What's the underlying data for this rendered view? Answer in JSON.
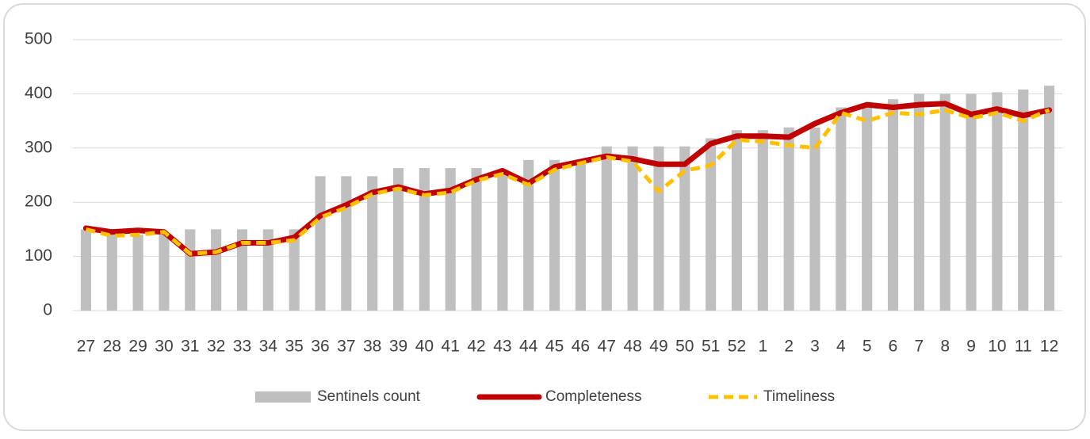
{
  "chart_data": {
    "type": "bar-line",
    "categories": [
      "27",
      "28",
      "29",
      "30",
      "31",
      "32",
      "33",
      "34",
      "35",
      "36",
      "37",
      "38",
      "39",
      "40",
      "41",
      "42",
      "43",
      "44",
      "45",
      "46",
      "47",
      "48",
      "49",
      "50",
      "51",
      "52",
      "1",
      "2",
      "3",
      "4",
      "5",
      "6",
      "7",
      "8",
      "9",
      "10",
      "11",
      "12"
    ],
    "series": [
      {
        "name": "Sentinels count",
        "type": "bar",
        "color": "#bfbfbf",
        "values": [
          150,
          140,
          140,
          140,
          150,
          150,
          150,
          150,
          150,
          248,
          248,
          248,
          263,
          263,
          263,
          263,
          255,
          278,
          278,
          270,
          303,
          303,
          303,
          303,
          318,
          333,
          333,
          338,
          338,
          375,
          375,
          390,
          400,
          400,
          400,
          403,
          408,
          415
        ]
      },
      {
        "name": "Completeness",
        "type": "line",
        "color": "#c00000",
        "dash": false,
        "values": [
          152,
          145,
          148,
          145,
          105,
          108,
          125,
          125,
          135,
          175,
          195,
          218,
          228,
          215,
          222,
          242,
          258,
          235,
          265,
          275,
          285,
          280,
          270,
          270,
          308,
          322,
          322,
          320,
          345,
          365,
          380,
          375,
          380,
          382,
          362,
          372,
          360,
          370
        ]
      },
      {
        "name": "Timeliness",
        "type": "line",
        "color": "#ffc000",
        "dash": true,
        "values": [
          150,
          138,
          140,
          145,
          105,
          108,
          125,
          125,
          130,
          172,
          190,
          215,
          225,
          213,
          218,
          240,
          252,
          232,
          260,
          272,
          283,
          275,
          220,
          258,
          268,
          315,
          312,
          305,
          300,
          365,
          350,
          365,
          362,
          370,
          355,
          365,
          350,
          370
        ]
      }
    ],
    "ylim": [
      0,
      500
    ],
    "yticks": [
      0,
      100,
      200,
      300,
      400,
      500
    ],
    "grid": true,
    "legend": "bottom"
  }
}
